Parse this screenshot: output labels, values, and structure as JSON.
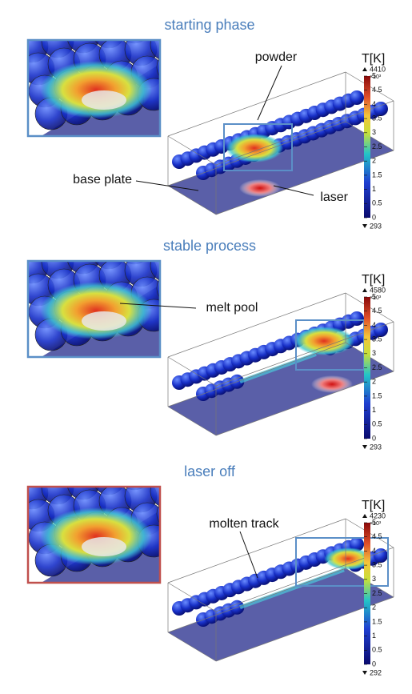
{
  "panels": [
    {
      "title": "starting phase",
      "colorbar": {
        "label": "T[K]",
        "max": 4410,
        "multiplier": "×10³",
        "ticks": [
          "5",
          "4.5",
          "4",
          "3.5",
          "3",
          "2.5",
          "2",
          "1.5",
          "1",
          "0.5",
          "0"
        ],
        "min": 293
      },
      "annotations": [
        "powder",
        "base plate",
        "laser"
      ]
    },
    {
      "title": "stable process",
      "colorbar": {
        "label": "T[K]",
        "max": 4580,
        "multiplier": "×10³",
        "ticks": [
          "5",
          "4.5",
          "4",
          "3.5",
          "3",
          "2.5",
          "2",
          "1.5",
          "1",
          "0.5",
          "0"
        ],
        "min": 293
      },
      "annotations": [
        "melt pool"
      ]
    },
    {
      "title": "laser off",
      "colorbar": {
        "label": "T[K]",
        "max": 4230,
        "multiplier": "×10³",
        "ticks": [
          "5",
          "4.5",
          "4",
          "3.5",
          "3",
          "2.5",
          "2",
          "1.5",
          "1",
          "0.5",
          "0"
        ],
        "min": 292
      },
      "annotations": [
        "molten track"
      ]
    }
  ]
}
